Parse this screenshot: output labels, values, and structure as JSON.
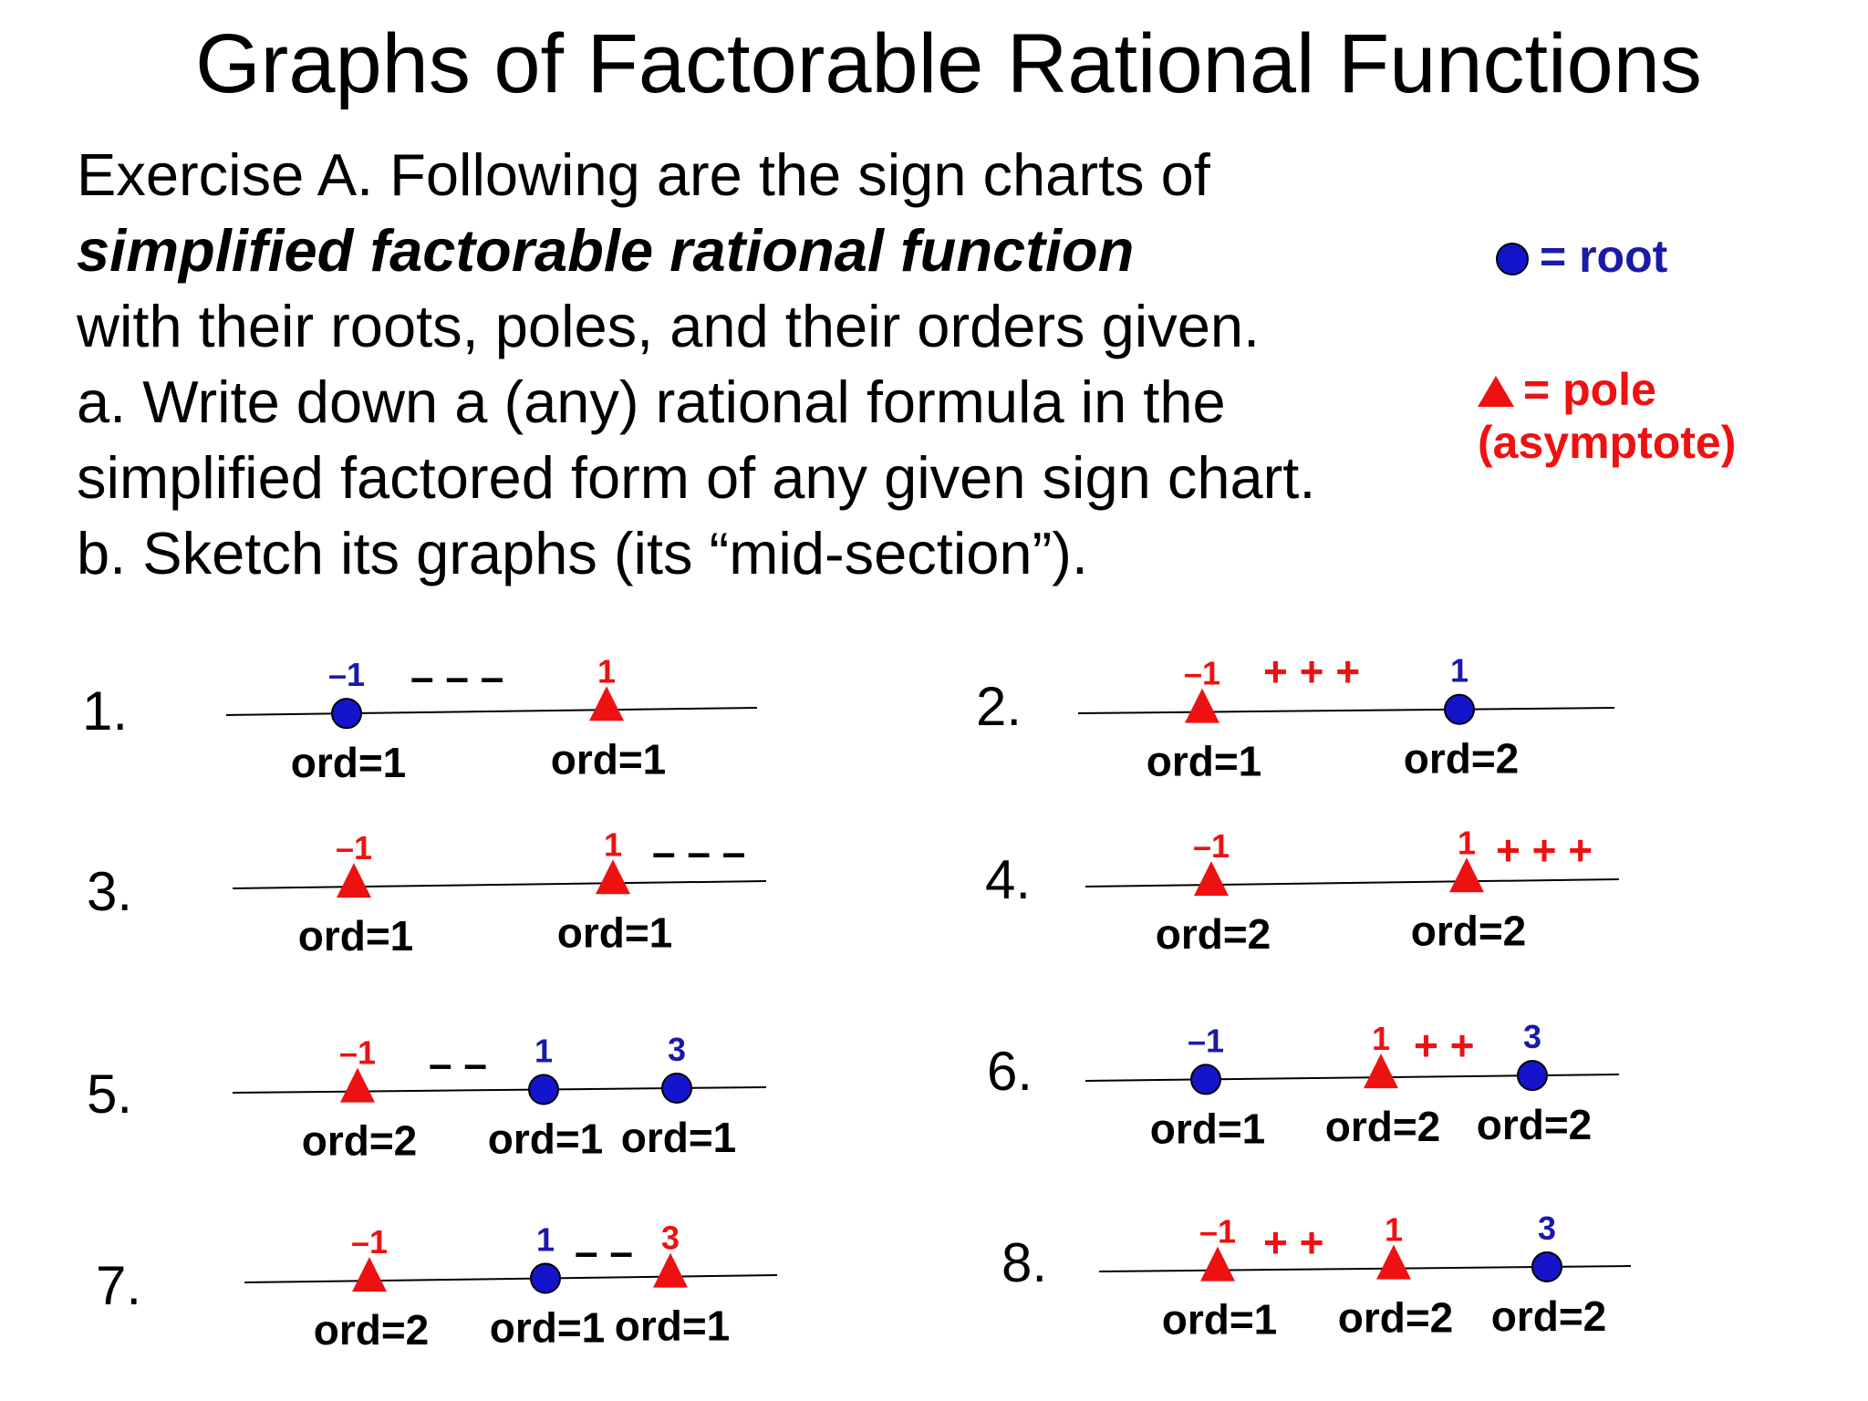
{
  "title": "Graphs of Factorable Rational Functions",
  "paragraph": {
    "line1": "Exercise A. Following are the sign charts of",
    "line2_emphasis": "simplified factorable rational function",
    "line3": "with their roots, poles, and their orders given.",
    "line4": "a. Write down a (any) rational formula in the",
    "line5": "simplified factored form of any given sign chart.",
    "line6": "b. Sketch its graphs (its “mid-section”)."
  },
  "legend": {
    "root_label": "= root",
    "pole_label": "= pole",
    "pole_sublabel": "(asymptote)",
    "root_color": "#1414cc",
    "pole_color": "#ee1111"
  },
  "colors": {
    "root": "#1414cc",
    "pole": "#ee1111",
    "positive": "#ee1111",
    "negative": "#000000"
  },
  "charts": [
    {
      "number": "1.",
      "points": [
        {
          "type": "root",
          "value": "–1",
          "order": "ord=1"
        },
        {
          "type": "pole",
          "value": "1",
          "order": "ord=1"
        }
      ],
      "sign": {
        "text": "–  –  –",
        "position": "between points 1 and 2",
        "sign": "negative"
      }
    },
    {
      "number": "2.",
      "points": [
        {
          "type": "pole",
          "value": "–1",
          "order": "ord=1"
        },
        {
          "type": "root",
          "value": "1",
          "order": "ord=2"
        }
      ],
      "sign": {
        "text": "+  +  +",
        "position": "between points 1 and 2",
        "sign": "positive"
      }
    },
    {
      "number": "3.",
      "points": [
        {
          "type": "pole",
          "value": "–1",
          "order": "ord=1"
        },
        {
          "type": "pole",
          "value": "1",
          "order": "ord=1"
        }
      ],
      "sign": {
        "text": "–  –  –",
        "position": "right of point 2",
        "sign": "negative"
      }
    },
    {
      "number": "4.",
      "points": [
        {
          "type": "pole",
          "value": "–1",
          "order": "ord=2"
        },
        {
          "type": "pole",
          "value": "1",
          "order": "ord=2"
        }
      ],
      "sign": {
        "text": "+  +  +",
        "position": "right of point 2",
        "sign": "positive"
      }
    },
    {
      "number": "5.",
      "points": [
        {
          "type": "pole",
          "value": "–1",
          "order": "ord=2"
        },
        {
          "type": "root",
          "value": "1",
          "order": "ord=1"
        },
        {
          "type": "root",
          "value": "3",
          "order": "ord=1"
        }
      ],
      "sign": {
        "text": "–  –",
        "position": "between points 1 and 2",
        "sign": "negative"
      }
    },
    {
      "number": "6.",
      "points": [
        {
          "type": "root",
          "value": "–1",
          "order": "ord=1"
        },
        {
          "type": "pole",
          "value": "1",
          "order": "ord=2"
        },
        {
          "type": "root",
          "value": "3",
          "order": "ord=2"
        }
      ],
      "sign": {
        "text": "+  +",
        "position": "between points 2 and 3",
        "sign": "positive"
      }
    },
    {
      "number": "7.",
      "points": [
        {
          "type": "pole",
          "value": "–1",
          "order": "ord=2"
        },
        {
          "type": "root",
          "value": "1",
          "order": "ord=1"
        },
        {
          "type": "pole",
          "value": "3",
          "order": "ord=1"
        }
      ],
      "sign": {
        "text": "–  –",
        "position": "between points 2 and 3",
        "sign": "negative"
      }
    },
    {
      "number": "8.",
      "points": [
        {
          "type": "pole",
          "value": "–1",
          "order": "ord=1"
        },
        {
          "type": "pole",
          "value": "1",
          "order": "ord=2"
        },
        {
          "type": "root",
          "value": "3",
          "order": "ord=2"
        }
      ],
      "sign": {
        "text": "+  +",
        "position": "between points 1 and 2",
        "sign": "positive"
      }
    }
  ]
}
